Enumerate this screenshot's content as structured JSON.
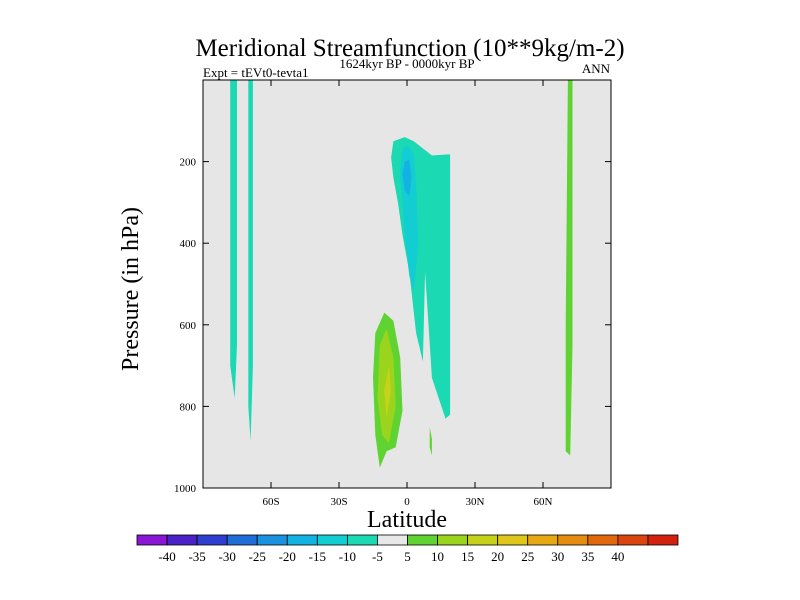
{
  "chart_data": {
    "type": "heatmap",
    "title": "Meridional Streamfunction (10**9kg/m-2)",
    "subtitle_left": "Expt = tEVt0-tevta1",
    "subtitle_center": "1624kyr BP - 0000kyr BP",
    "subtitle_right": "ANN",
    "xlabel": "Latitude",
    "ylabel": "Pressure (in hPa)",
    "xlim": [
      -90,
      90
    ],
    "ylim": [
      1000,
      0
    ],
    "x_ticks": [
      {
        "value": -60,
        "label": "60S"
      },
      {
        "value": -30,
        "label": "30S"
      },
      {
        "value": 0,
        "label": "0"
      },
      {
        "value": 30,
        "label": "30N"
      },
      {
        "value": 60,
        "label": "60N"
      }
    ],
    "y_ticks": [
      {
        "value": 200,
        "label": "200"
      },
      {
        "value": 400,
        "label": "400"
      },
      {
        "value": 600,
        "label": "600"
      },
      {
        "value": 800,
        "label": "800"
      },
      {
        "value": 1000,
        "label": "1000"
      }
    ],
    "background_color": "#e6e6e6",
    "colorbar": {
      "colors": [
        "#8b16d4",
        "#4b22c8",
        "#2e3fd0",
        "#1f6ed8",
        "#1b92e0",
        "#12b2e2",
        "#12cdd2",
        "#1bd9b2",
        "#e8e8e8",
        "#5fd332",
        "#9bd41c",
        "#c6d21a",
        "#e0c51a",
        "#e8a812",
        "#e68c0e",
        "#e2680e",
        "#da440f",
        "#d2220f"
      ],
      "labels": [
        "-40",
        "-35",
        "-30",
        "-25",
        "-20",
        "-15",
        "-10",
        "-5",
        "5",
        "10",
        "15",
        "20",
        "25",
        "30",
        "35",
        "40"
      ]
    },
    "regions": [
      {
        "name": "sh-polar-cell-west",
        "value": -7,
        "color": "#1bd9b2",
        "points": [
          [
            -78,
            0
          ],
          [
            -75,
            0
          ],
          [
            -75,
            650
          ],
          [
            -76,
            780
          ],
          [
            -78,
            700
          ]
        ]
      },
      {
        "name": "sh-polar-cell-east",
        "value": -7,
        "color": "#1bd9b2",
        "points": [
          [
            -70,
            0
          ],
          [
            -68,
            0
          ],
          [
            -68,
            700
          ],
          [
            -69,
            885
          ],
          [
            -70,
            800
          ]
        ]
      },
      {
        "name": "nh-tropical-cell-outer",
        "value": -7,
        "color": "#1bd9b2",
        "points": [
          [
            -7,
            190
          ],
          [
            -6,
            150
          ],
          [
            -1,
            140
          ],
          [
            3,
            150
          ],
          [
            11,
            185
          ],
          [
            19,
            182
          ],
          [
            19,
            820
          ],
          [
            17,
            830
          ],
          [
            11,
            730
          ],
          [
            8,
            470
          ],
          [
            7,
            690
          ],
          [
            4,
            620
          ],
          [
            1,
            470
          ],
          [
            -2,
            380
          ],
          [
            -4,
            300
          ],
          [
            -6,
            240
          ]
        ]
      },
      {
        "name": "nh-tropical-cell-mid",
        "value": -12,
        "color": "#12cdd2",
        "points": [
          [
            -2,
            170
          ],
          [
            0,
            160
          ],
          [
            3,
            180
          ],
          [
            4,
            260
          ],
          [
            5,
            400
          ],
          [
            3,
            520
          ],
          [
            1,
            480
          ],
          [
            -1,
            380
          ],
          [
            -2,
            300
          ],
          [
            -3,
            220
          ]
        ]
      },
      {
        "name": "nh-tropical-cell-core",
        "value": -17,
        "color": "#12b2e2",
        "points": [
          [
            -1,
            200
          ],
          [
            1,
            195
          ],
          [
            2,
            240
          ],
          [
            1,
            285
          ],
          [
            -1,
            270
          ],
          [
            -2,
            230
          ]
        ]
      },
      {
        "name": "sh-tropical-cell-outer",
        "value": 7,
        "color": "#5fd332",
        "points": [
          [
            -12,
            950
          ],
          [
            -14,
            870
          ],
          [
            -15,
            730
          ],
          [
            -14,
            620
          ],
          [
            -10,
            570
          ],
          [
            -6,
            590
          ],
          [
            -3,
            680
          ],
          [
            -2,
            810
          ],
          [
            -5,
            900
          ],
          [
            -9,
            910
          ]
        ]
      },
      {
        "name": "sh-tropical-cell-mid",
        "value": 12,
        "color": "#9bd41c",
        "points": [
          [
            -11,
            870
          ],
          [
            -13,
            780
          ],
          [
            -12,
            650
          ],
          [
            -9,
            610
          ],
          [
            -6,
            680
          ],
          [
            -5,
            800
          ],
          [
            -8,
            890
          ]
        ]
      },
      {
        "name": "sh-tropical-cell-core",
        "value": 17,
        "color": "#c6d21a",
        "points": [
          [
            -9,
            830
          ],
          [
            -10,
            760
          ],
          [
            -8,
            700
          ],
          [
            -7,
            760
          ]
        ]
      },
      {
        "name": "nh-tropical-low-sliver",
        "value": 7,
        "color": "#5fd332",
        "points": [
          [
            10,
            850
          ],
          [
            11,
            880
          ],
          [
            11,
            920
          ],
          [
            10,
            900
          ]
        ]
      },
      {
        "name": "nh-polar-cell",
        "value": 7,
        "color": "#5fd332",
        "points": [
          [
            71,
            0
          ],
          [
            73,
            0
          ],
          [
            73,
            650
          ],
          [
            72,
            920
          ],
          [
            70,
            910
          ],
          [
            70,
            600
          ]
        ]
      }
    ]
  }
}
